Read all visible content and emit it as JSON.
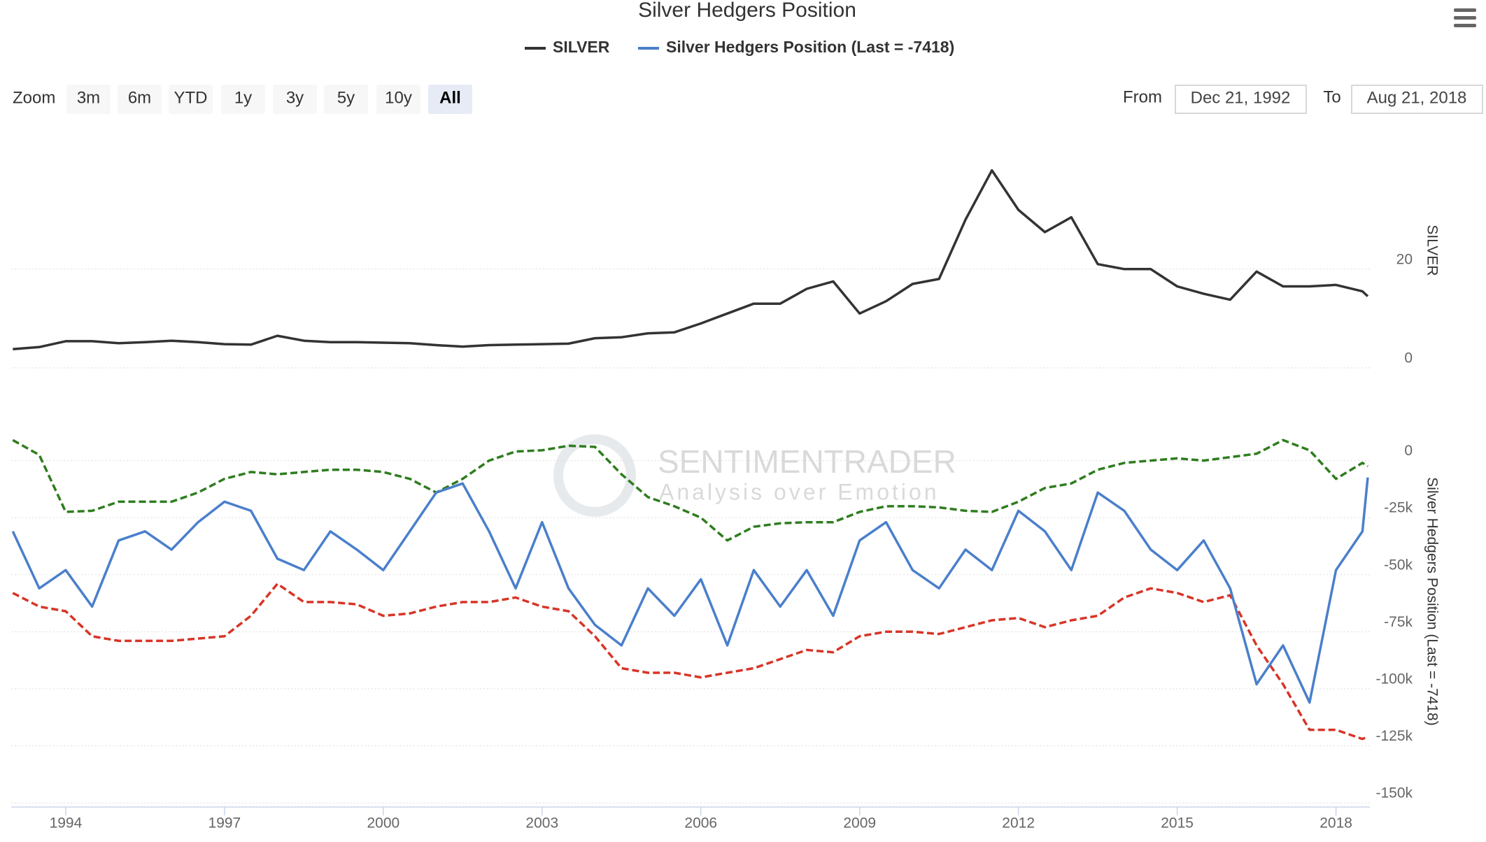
{
  "chart_data": {
    "type": "line",
    "title": "Silver Hedgers Position",
    "ylabel": "SILVER",
    "y2label": "Silver Hedgers Position (Last = -7418)",
    "x": [
      1993,
      1993.5,
      1994,
      1994.5,
      1995,
      1995.5,
      1996,
      1996.5,
      1997,
      1997.5,
      1998,
      1998.5,
      1999,
      1999.5,
      2000,
      2000.5,
      2001,
      2001.5,
      2002,
      2002.5,
      2003,
      2003.5,
      2004,
      2004.5,
      2005,
      2005.5,
      2006,
      2006.5,
      2007,
      2007.5,
      2008,
      2008.5,
      2009,
      2009.5,
      2010,
      2010.5,
      2011,
      2011.5,
      2012,
      2012.5,
      2013,
      2013.5,
      2014,
      2014.5,
      2015,
      2015.5,
      2016,
      2016.5,
      2017,
      2017.5,
      2018,
      2018.5,
      2018.6
    ],
    "xlim": [
      1992.97,
      2018.64
    ],
    "xticks": [
      1994,
      1997,
      2000,
      2003,
      2006,
      2009,
      2012,
      2015,
      2018
    ],
    "ylim": [
      0,
      50
    ],
    "yticks": [
      0,
      20
    ],
    "y2lim": [
      -150000,
      10000
    ],
    "y2ticks": [
      0,
      {
        "value": -25000,
        "label": "-25k"
      },
      {
        "value": -50000,
        "label": "-50k"
      },
      {
        "value": -75000,
        "label": "-75k"
      },
      {
        "value": -100000,
        "label": "-100k"
      },
      {
        "value": -125000,
        "label": "-125k"
      },
      {
        "value": -150000,
        "label": "-150k"
      }
    ],
    "grid": true,
    "series": [
      {
        "name": "SILVER",
        "color": "#333333",
        "values": [
          3.8,
          4.2,
          5.4,
          5.4,
          5,
          5.2,
          5.5,
          5.2,
          4.8,
          4.7,
          6.5,
          5.5,
          5.2,
          5.2,
          5.1,
          5,
          4.6,
          4.3,
          4.6,
          4.7,
          4.8,
          4.9,
          6,
          6.2,
          7,
          7.2,
          9,
          11,
          13,
          13,
          16,
          17.5,
          11,
          13.5,
          17,
          18,
          30,
          40,
          32,
          27.5,
          30.5,
          21,
          20,
          20,
          16.5,
          15,
          13.8,
          19.5,
          16.5,
          16.5,
          16.8,
          15.5,
          14.5
        ]
      },
      {
        "name": "Silver Hedgers Position (Last = -7418)",
        "color": "#4a7fcb",
        "axis": "y2",
        "values": [
          -31000,
          -56000,
          -48000,
          -64000,
          -35000,
          -31000,
          -39000,
          -27000,
          -18000,
          -22000,
          -43000,
          -48000,
          -31000,
          -39000,
          -48000,
          -31000,
          -14000,
          -10000,
          -31000,
          -56000,
          -27000,
          -56000,
          -72000,
          -81000,
          -56000,
          -68000,
          -52000,
          -81000,
          -48000,
          -64000,
          -48000,
          -68000,
          -35000,
          -27000,
          -48000,
          -56000,
          -39000,
          -48000,
          -22000,
          -31000,
          -48000,
          -14000,
          -22000,
          -39000,
          -48000,
          -35000,
          -56000,
          -98000,
          -81000,
          -106000,
          -48000,
          -31000,
          -7418
        ]
      },
      {
        "color": "#2e7d1e",
        "axis": "y2",
        "dashed": true,
        "values": [
          9000,
          2500,
          -22500,
          -22000,
          -18000,
          -18000,
          -18000,
          -14000,
          -8000,
          -5000,
          -6000,
          -5000,
          -4000,
          -4000,
          -5000,
          -8000,
          -14000,
          -8000,
          0,
          4000,
          4500,
          6500,
          6000,
          -6000,
          -16000,
          -20000,
          -25000,
          -35000,
          -29000,
          -27500,
          -27000,
          -27000,
          -22500,
          -20000,
          -20000,
          -20500,
          -22000,
          -22500,
          -18000,
          -12000,
          -10000,
          -4000,
          -1000,
          0,
          1000,
          0,
          1500,
          3000,
          9000,
          4500,
          -8000,
          -1000,
          -2500
        ]
      },
      {
        "color": "#d73527",
        "axis": "y2",
        "dashed": true,
        "values": [
          -58000,
          -64000,
          -66000,
          -77000,
          -79000,
          -79000,
          -79000,
          -78000,
          -77000,
          -68000,
          -54000,
          -62000,
          -62000,
          -63000,
          -68000,
          -67000,
          -64000,
          -62000,
          -62000,
          -60000,
          -64000,
          -66000,
          -77000,
          -91000,
          -93000,
          -93000,
          -95000,
          -93000,
          -91000,
          -87000,
          -83000,
          -84000,
          -77000,
          -75000,
          -75000,
          -76000,
          -73000,
          -70000,
          -69000,
          -73000,
          -70000,
          -68000,
          -60000,
          -56000,
          -58000,
          -62000,
          -59000,
          -81000,
          -98000,
          -118000,
          -118000,
          -122000,
          -121000
        ]
      }
    ]
  },
  "range_selector": {
    "zoom_label": "Zoom",
    "buttons": [
      "3m",
      "6m",
      "YTD",
      "1y",
      "3y",
      "5y",
      "10y",
      "All"
    ],
    "from_label": "From",
    "from_value": "Dec 21, 1992",
    "to_label": "To",
    "to_value": "Aug 21, 2018"
  },
  "watermark": {
    "name": "SENTIMENTRADER",
    "tagline": "Analysis over Emotion"
  }
}
